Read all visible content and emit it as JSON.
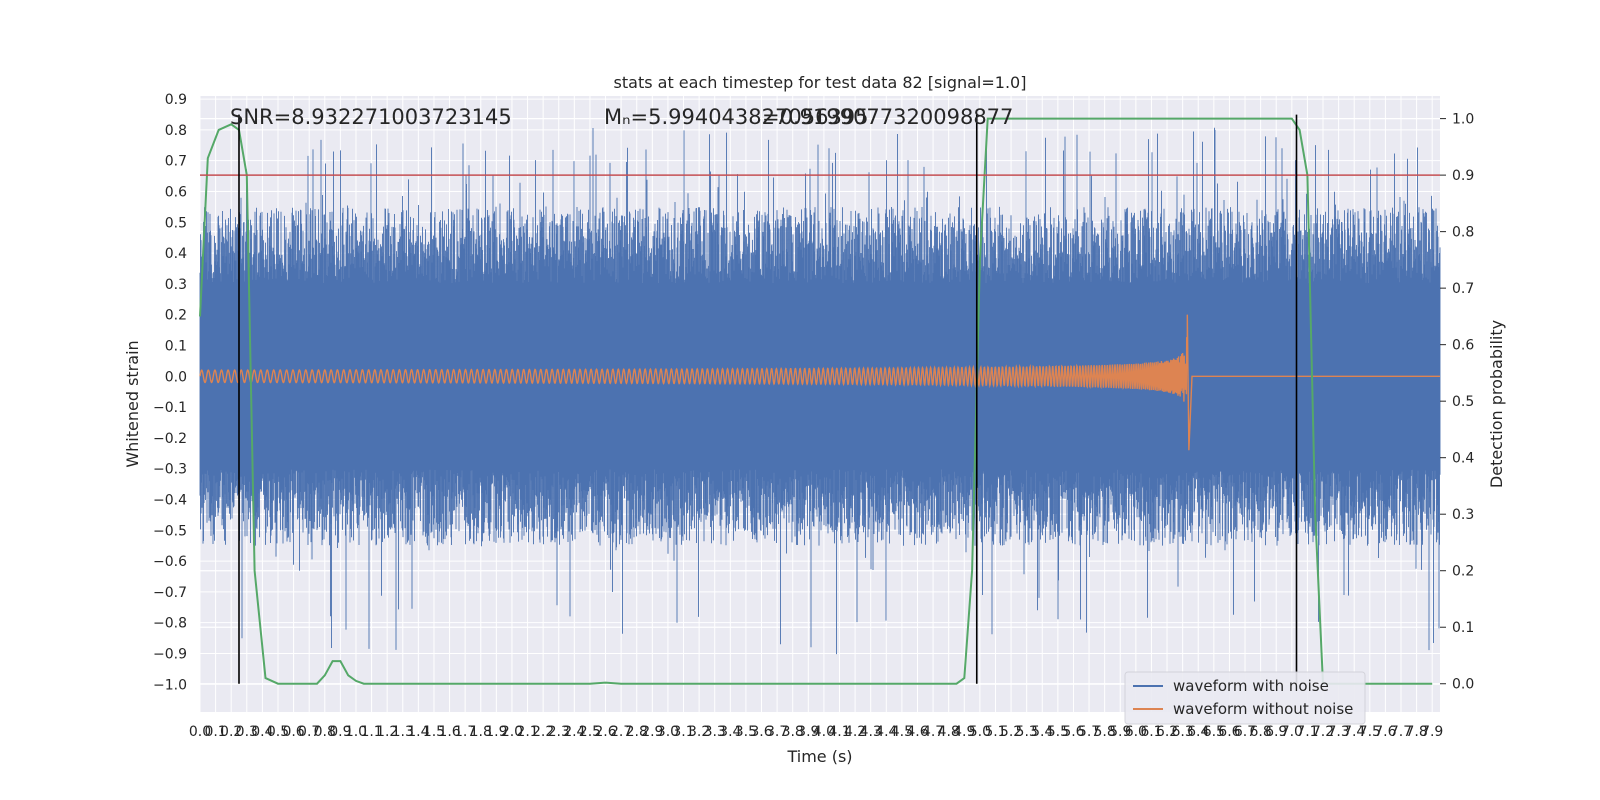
{
  "chart_data": {
    "type": "line",
    "title": "stats at each timestep for test data 82 [signal=1.0]",
    "xlabel": "Time (s)",
    "ylabel": "Whitened strain",
    "y2label": "Detection probability",
    "xlim": [
      0.0,
      7.95
    ],
    "ylim": [
      -1.09,
      0.91
    ],
    "y2lim": [
      -0.05,
      1.04
    ],
    "x_tick_labels": [
      "0.0",
      "0.1",
      "0.2",
      "0.3",
      "0.4",
      "0.5",
      "0.6",
      "0.7",
      "0.8",
      "0.9",
      "1.0",
      "1.1",
      "1.2",
      "1.3",
      "1.4",
      "1.5",
      "1.6",
      "1.7",
      "1.8",
      "1.9",
      "2.0",
      "2.1",
      "2.2",
      "2.3",
      "2.4",
      "2.5",
      "2.6",
      "2.7",
      "2.8",
      "2.9",
      "3.0",
      "3.1",
      "3.2",
      "3.3",
      "3.4",
      "3.5",
      "3.6",
      "3.7",
      "3.8",
      "3.9",
      "4.0",
      "4.1",
      "4.2",
      "4.3",
      "4.4",
      "4.5",
      "4.6",
      "4.7",
      "4.8",
      "4.9",
      "5.0",
      "5.1",
      "5.2",
      "5.3",
      "5.4",
      "5.5",
      "5.6",
      "5.7",
      "5.8",
      "5.9",
      "6.0",
      "6.1",
      "6.2",
      "6.3",
      "6.4",
      "6.5",
      "6.6",
      "6.7",
      "6.8",
      "6.9",
      "7.0",
      "7.1",
      "7.2",
      "7.3",
      "7.4",
      "7.5",
      "7.6",
      "7.7",
      "7.8",
      "7.9"
    ],
    "y_tick_labels": [
      "0.9",
      "0.8",
      "0.7",
      "0.6",
      "0.5",
      "0.4",
      "0.3",
      "0.2",
      "0.1",
      "0.0",
      "−0.1",
      "−0.2",
      "−0.3",
      "−0.4",
      "−0.5",
      "−0.6",
      "−0.7",
      "−0.8",
      "−0.9",
      "−1.0"
    ],
    "y2_tick_labels": [
      "0.0",
      "0.1",
      "0.2",
      "0.3",
      "0.4",
      "0.5",
      "0.6",
      "0.7",
      "0.8",
      "0.9",
      "1.0"
    ],
    "threshold": {
      "y2": 0.9,
      "color": "#c44e52"
    },
    "event_markers_x": [
      0.25,
      4.98,
      7.03
    ],
    "annotations": {
      "snr": "SNR=8.932271003723145",
      "chirp_mass": "Mₙ=5.994043827056395",
      "chirp_mass_overlap": "=0.9199077320098877"
    },
    "series": [
      {
        "name": "waveform with noise",
        "color": "#4c72b0",
        "description_stats": {
          "typical_min": -0.55,
          "typical_max": 0.55,
          "peak_max": 0.81,
          "peak_min": -0.99
        }
      },
      {
        "name": "waveform without noise",
        "color": "#dd8452",
        "chirp": {
          "start_amplitude": 0.02,
          "merger_x": 6.33,
          "merger_max": 0.2,
          "merger_min": -0.24
        }
      },
      {
        "name": "detection probability",
        "color": "#55a868",
        "axis": "y2",
        "x": [
          0.0,
          0.05,
          0.12,
          0.2,
          0.25,
          0.3,
          0.35,
          0.42,
          0.5,
          0.6,
          0.7,
          0.75,
          0.8,
          0.85,
          0.9,
          0.95,
          1.0,
          1.05,
          1.1,
          1.2,
          2.5,
          2.6,
          2.7,
          4.85,
          4.9,
          4.95,
          5.0,
          5.05,
          7.0,
          7.05,
          7.1,
          7.15,
          7.2,
          7.9
        ],
        "y": [
          0.65,
          0.93,
          0.98,
          0.99,
          0.98,
          0.9,
          0.2,
          0.01,
          0.0,
          0.0,
          0.0,
          0.0,
          0.015,
          0.04,
          0.04,
          0.015,
          0.005,
          0.0,
          0.0,
          0.0,
          0.0,
          0.002,
          0.0,
          0.0,
          0.01,
          0.2,
          0.75,
          1.0,
          1.0,
          0.98,
          0.9,
          0.3,
          0.0,
          0.0
        ]
      }
    ],
    "legend": {
      "position": "lower-right",
      "entries": [
        "waveform with noise",
        "waveform without noise"
      ]
    }
  }
}
